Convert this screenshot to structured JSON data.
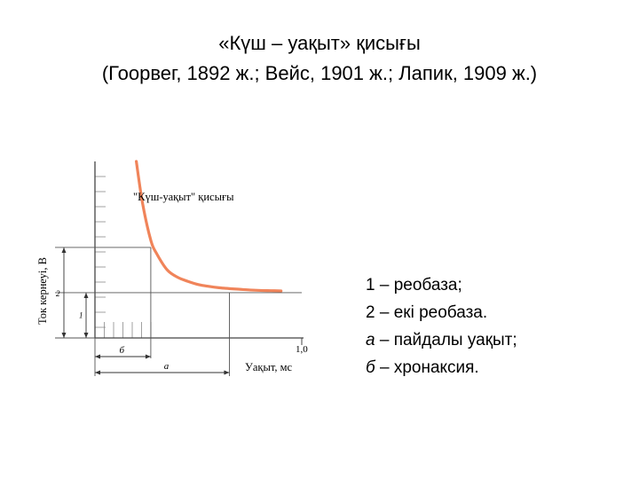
{
  "slide": {
    "title": "«Күш – уақыт» қисығы",
    "subtitle": "(Гоорвег, 1892 ж.; Вейс, 1901 ж.; Лапик, 1909 ж.)"
  },
  "legend": [
    {
      "key": "1",
      "sep": " – ",
      "text": "реобаза;",
      "italic": false
    },
    {
      "key": "2",
      "sep": " – ",
      "text": "екі реобаза.",
      "italic": false
    },
    {
      "key": "а",
      "sep": " – ",
      "text": "пайдалы уақыт;",
      "italic": true
    },
    {
      "key": "б",
      "sep": " – ",
      "text": "хронаксия.",
      "italic": true
    }
  ],
  "chart_data": {
    "type": "line",
    "title": "\"Күш-уақыт\" қисығы",
    "xlabel": "Уақыт, мс",
    "ylabel": "Ток кернеуі, В",
    "x_ticks": [
      {
        "value": 1.0,
        "label": "1,0"
      }
    ],
    "xlim": [
      0,
      1.0
    ],
    "ylim": [
      0,
      3.9
    ],
    "rheobase": 1,
    "double_rheobase": 2,
    "chronaxie": 0.27,
    "useful_time": 0.65,
    "marks": {
      "rheobase": "1",
      "double": "2",
      "chronaxie": "б",
      "useful_time": "а"
    },
    "series": [
      {
        "x": [
          0.2,
          0.23,
          0.27,
          0.3,
          0.35,
          0.4,
          0.45,
          0.5,
          0.55,
          0.6,
          0.65,
          0.7,
          0.75,
          0.8,
          0.85,
          0.9
        ],
        "y": [
          3.9,
          2.98,
          2.16,
          1.85,
          1.5,
          1.34,
          1.25,
          1.18,
          1.14,
          1.11,
          1.09,
          1.075,
          1.06,
          1.05,
          1.045,
          1.04
        ]
      }
    ],
    "curve_color": "#f0845a",
    "grid": true
  }
}
